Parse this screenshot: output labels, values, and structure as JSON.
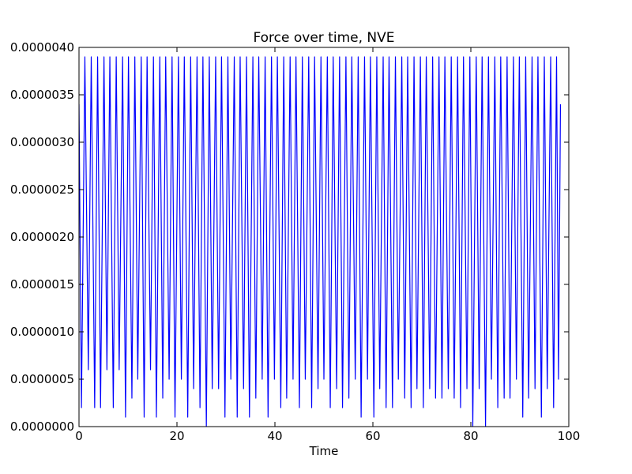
{
  "chart_data": {
    "type": "line",
    "title": "Force over time, NVE",
    "xlabel": "Time",
    "ylabel": "",
    "xlim": [
      0,
      100
    ],
    "ylim": [
      0,
      4e-06
    ],
    "x_ticks": [
      0,
      20,
      40,
      60,
      80,
      100
    ],
    "x_tick_labels": [
      "0",
      "20",
      "40",
      "60",
      "80",
      "100"
    ],
    "y_ticks": [
      0,
      5e-07,
      1e-06,
      1.5e-06,
      2e-06,
      2.5e-06,
      3e-06,
      3.5e-06,
      4e-06
    ],
    "y_tick_labels": [
      "0.0000000",
      "0.0000005",
      "0.0000010",
      "0.0000015",
      "0.0000020",
      "0.0000025",
      "0.0000030",
      "0.0000035",
      "0.0000040"
    ],
    "grid": false,
    "legend": "none",
    "series": [
      {
        "color": "#0000ff",
        "x": [
          0.0,
          0.5,
          1.2,
          1.9,
          2.5,
          3.2,
          3.8,
          4.4,
          5.1,
          5.7,
          6.3,
          7.0,
          7.6,
          8.2,
          8.9,
          9.5,
          10.1,
          10.8,
          11.4,
          12.0,
          12.7,
          13.3,
          13.9,
          14.6,
          15.2,
          15.8,
          16.5,
          17.1,
          17.7,
          18.4,
          19.0,
          19.6,
          20.3,
          20.9,
          21.5,
          22.2,
          22.8,
          23.4,
          24.1,
          24.7,
          25.3,
          26.0,
          26.6,
          27.2,
          27.9,
          28.5,
          29.1,
          29.8,
          30.4,
          31.0,
          31.7,
          32.3,
          32.9,
          33.6,
          34.2,
          34.8,
          35.5,
          36.1,
          36.7,
          37.4,
          38.0,
          38.6,
          39.3,
          39.9,
          40.5,
          41.2,
          41.8,
          42.4,
          43.1,
          43.7,
          44.3,
          45.0,
          45.6,
          46.2,
          46.9,
          47.5,
          48.1,
          48.8,
          49.4,
          50.0,
          50.7,
          51.3,
          51.9,
          52.6,
          53.2,
          53.8,
          54.5,
          55.1,
          55.7,
          56.4,
          57.0,
          57.6,
          58.3,
          58.9,
          59.5,
          60.2,
          60.8,
          61.4,
          62.1,
          62.7,
          63.3,
          64.0,
          64.6,
          65.2,
          65.9,
          66.5,
          67.1,
          67.8,
          68.4,
          69.0,
          69.7,
          70.3,
          70.9,
          71.6,
          72.2,
          72.8,
          73.5,
          74.1,
          74.7,
          75.4,
          76.0,
          76.6,
          77.3,
          77.9,
          78.5,
          79.2,
          79.8,
          80.4,
          81.1,
          81.7,
          82.3,
          83.0,
          83.6,
          84.2,
          84.9,
          85.5,
          86.1,
          86.8,
          87.4,
          88.0,
          88.7,
          89.3,
          89.9,
          90.6,
          91.2,
          91.8,
          92.5,
          93.1,
          93.7,
          94.4,
          95.0,
          95.6,
          96.3,
          96.9,
          97.5,
          97.9,
          98.3
        ],
        "y": [
          3.4e-06,
          2e-07,
          3.9e-06,
          6e-07,
          3.9e-06,
          2e-07,
          3.9e-06,
          2e-07,
          3.9e-06,
          6e-07,
          3.9e-06,
          2e-07,
          3.9e-06,
          6e-07,
          3.9e-06,
          1e-07,
          3.9e-06,
          3e-07,
          3.9e-06,
          5e-07,
          3.9e-06,
          1e-07,
          3.9e-06,
          6e-07,
          3.9e-06,
          1e-07,
          3.9e-06,
          3e-07,
          3.9e-06,
          5e-07,
          3.9e-06,
          1e-07,
          3.9e-06,
          5e-07,
          3.9e-06,
          1e-07,
          3.9e-06,
          4e-07,
          3.9e-06,
          2e-07,
          3.9e-06,
          0.0,
          3.9e-06,
          4e-07,
          3.9e-06,
          4e-07,
          3.9e-06,
          1e-07,
          3.9e-06,
          5e-07,
          3.9e-06,
          1e-07,
          3.9e-06,
          4e-07,
          3.9e-06,
          1e-07,
          3.9e-06,
          3e-07,
          3.9e-06,
          5e-07,
          3.9e-06,
          1e-07,
          3.9e-06,
          5e-07,
          3.9e-06,
          2e-07,
          3.9e-06,
          3e-07,
          3.9e-06,
          5e-07,
          3.9e-06,
          2e-07,
          3.9e-06,
          5e-07,
          3.9e-06,
          2e-07,
          3.9e-06,
          4e-07,
          3.9e-06,
          5e-07,
          3.9e-06,
          2e-07,
          3.9e-06,
          4e-07,
          3.9e-06,
          2e-07,
          3.9e-06,
          3e-07,
          3.9e-06,
          5e-07,
          3.9e-06,
          1e-07,
          3.9e-06,
          5e-07,
          3.9e-06,
          1e-07,
          3.9e-06,
          4e-07,
          3.9e-06,
          2e-07,
          3.9e-06,
          2e-07,
          3.9e-06,
          5e-07,
          3.9e-06,
          3e-07,
          3.9e-06,
          2e-07,
          3.9e-06,
          4e-07,
          3.9e-06,
          2e-07,
          3.9e-06,
          4e-07,
          3.9e-06,
          3e-07,
          3.9e-06,
          3e-07,
          3.9e-06,
          4e-07,
          3.9e-06,
          3e-07,
          3.9e-06,
          2e-07,
          3.9e-06,
          4e-07,
          3.9e-06,
          0.0,
          3.9e-06,
          4e-07,
          3.9e-06,
          0.0,
          3.9e-06,
          5e-07,
          3.9e-06,
          2e-07,
          3.9e-06,
          3e-07,
          3.9e-06,
          3e-07,
          3.9e-06,
          5e-07,
          3.9e-06,
          1e-07,
          3.9e-06,
          3e-07,
          3.9e-06,
          4e-07,
          3.9e-06,
          1e-07,
          3.9e-06,
          4e-07,
          3.9e-06,
          2e-07,
          3.9e-06,
          5e-07,
          3.4e-06
        ]
      }
    ]
  }
}
